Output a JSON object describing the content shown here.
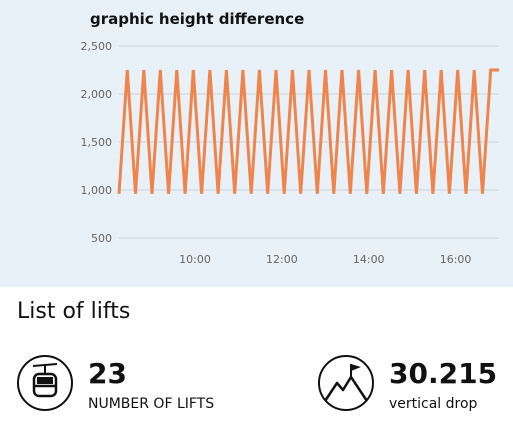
{
  "chart_data": {
    "type": "line",
    "title": "graphic height difference",
    "xlabel": "",
    "ylabel": "",
    "y_ticks": [
      "500",
      "1,000",
      "1,500",
      "2,000",
      "2,500"
    ],
    "x_ticks": [
      "10:00",
      "12:00",
      "14:00",
      "16:00"
    ],
    "ylim": [
      500,
      2500
    ],
    "x_range_hours": [
      8.25,
      17.0
    ],
    "grid": true,
    "series": [
      {
        "color": "#f0844a",
        "low": 960,
        "high": 2250,
        "cycles": 23
      }
    ]
  },
  "lifts": {
    "title": "List of lifts",
    "count_value": "23",
    "count_label": "NUMBER OF LIFTS",
    "drop_value": "30.215",
    "drop_label": "vertical drop",
    "count_icon": "gondola-icon",
    "drop_icon": "mountain-flag-icon"
  }
}
